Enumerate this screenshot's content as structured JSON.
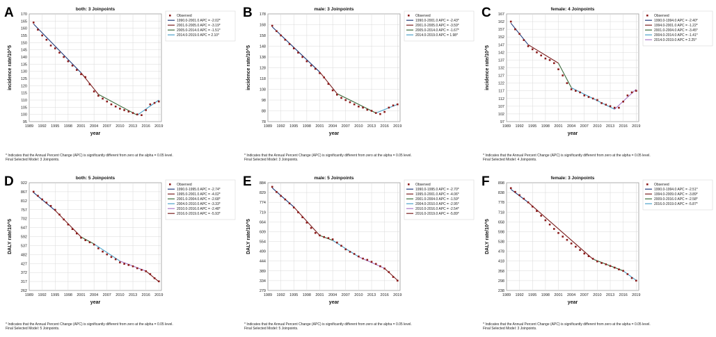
{
  "figure": {
    "footnote_line1": "* Indicates that the Annual Percent Change (APC) is significantly different from zero at the alpha = 0.05 level.",
    "observed_label": "Observed",
    "colors": {
      "observed": "#8b1a1a",
      "seg1": "#1f3a7a",
      "seg2": "#7a1f1f",
      "seg3": "#3a6a3a",
      "seg4": "#4aa0c8",
      "seg5": "#a878c8",
      "grid": "#d8d8d8",
      "frame": "#9a9a9a"
    }
  },
  "chart_data": [
    {
      "panel_label": "A",
      "type": "line",
      "title": "both: 3 Joinpoints",
      "xlabel": "year",
      "ylabel": "incidence rate/10^5",
      "xticks": [
        "1989",
        "1992",
        "1995",
        "1998",
        "2001",
        "2004",
        "2007",
        "2010",
        "2013",
        "2016",
        "2019"
      ],
      "yticks": [
        "95",
        "100",
        "105",
        "110",
        "115",
        "120",
        "125",
        "130",
        "135",
        "140",
        "145",
        "150",
        "155",
        "160",
        "165",
        "170"
      ],
      "xlim": [
        1989,
        2019.6
      ],
      "ylim": [
        95,
        170
      ],
      "legend": [
        "1990.0-2001.0 APC = -2.02*",
        "2001.0-2005.0 APC = -3.19*",
        "2005.0-2014.0 APC = -1.51*",
        "2014.0-2019.0 APC = 2.10*"
      ],
      "final_model": "Final Selected Model: 3 Joinpoints.",
      "x": [
        1990,
        1991,
        1992,
        1993,
        1994,
        1995,
        1996,
        1997,
        1998,
        1999,
        2000,
        2001,
        2002,
        2003,
        2004,
        2005,
        2006,
        2007,
        2008,
        2009,
        2010,
        2011,
        2012,
        2013,
        2014,
        2015,
        2016,
        2017,
        2018,
        2019
      ],
      "observed": [
        164,
        159,
        155,
        152,
        148,
        146,
        143,
        140,
        137,
        134,
        131,
        128,
        126,
        121,
        116,
        113,
        111,
        109,
        107,
        105.5,
        104,
        103,
        102,
        101,
        100,
        99.5,
        103,
        107,
        108,
        109
      ],
      "fit_segments": [
        [
          1990,
          2001,
          163,
          129
        ],
        [
          2001,
          2005,
          129,
          114
        ],
        [
          2005,
          2014,
          114,
          99.5
        ],
        [
          2014,
          2019,
          99.5,
          110
        ]
      ]
    },
    {
      "panel_label": "B",
      "type": "line",
      "title": "male: 3 Joinpoints",
      "xlabel": "year",
      "ylabel": "incidence rate/10^5",
      "xticks": [
        "1989",
        "1992",
        "1995",
        "1998",
        "2001",
        "2004",
        "2007",
        "2010",
        "2013",
        "2016",
        "2019"
      ],
      "yticks": [
        "78",
        "88",
        "98",
        "108",
        "118",
        "128",
        "138",
        "148",
        "158",
        "168",
        "178"
      ],
      "xlim": [
        1989,
        2019.6
      ],
      "ylim": [
        78,
        178
      ],
      "legend": [
        "1990.0-2001.0 APC = -2.43*",
        "2001.0-2005.0 APC = -3.59*",
        "2005.0-2014.0 APC = -1.67*",
        "2014.0-2019.0 APC = 1.98*"
      ],
      "final_model": "Final Selected Model: 3 Joinpoints.",
      "x": [
        1990,
        1991,
        1992,
        1993,
        1994,
        1995,
        1996,
        1997,
        1998,
        1999,
        2000,
        2001,
        2002,
        2003,
        2004,
        2005,
        2006,
        2007,
        2008,
        2009,
        2010,
        2011,
        2012,
        2013,
        2014,
        2015,
        2016,
        2017,
        2018,
        2019
      ],
      "observed": [
        167,
        162,
        158,
        154,
        150,
        146,
        142,
        138,
        134,
        130,
        127,
        123,
        119,
        113,
        107,
        103,
        100,
        98,
        96,
        94,
        92,
        91,
        89,
        88,
        86,
        85,
        87,
        91,
        93,
        94
      ],
      "fit_segments": [
        [
          1990,
          2001,
          166,
          124
        ],
        [
          2001,
          2005,
          124,
          104
        ],
        [
          2005,
          2014,
          104,
          86
        ],
        [
          2014,
          2019,
          86,
          94
        ]
      ]
    },
    {
      "panel_label": "C",
      "type": "line",
      "title": "female: 4 Joinpoints",
      "xlabel": "year",
      "ylabel": "incidence rate/10^5",
      "xticks": [
        "1989",
        "1992",
        "1995",
        "1998",
        "2001",
        "2004",
        "2007",
        "2010",
        "2013",
        "2016",
        "2019"
      ],
      "yticks": [
        "97",
        "102",
        "107",
        "112",
        "117",
        "122",
        "127",
        "132",
        "137",
        "142",
        "147",
        "152",
        "157",
        "162",
        "167"
      ],
      "xlim": [
        1989,
        2019.6
      ],
      "ylim": [
        97,
        167
      ],
      "legend": [
        "1990.0-1994.0 APC = -2.40*",
        "1994.0-2001.0 APC = -1.22*",
        "2001.0-2004.0 APC = -3.45*",
        "2004.0-2014.0 APC = -1.41*",
        "2014.0-2019.0 APC = 2.25*"
      ],
      "final_model": "Final Selected Model: 4 Joinpoints.",
      "x": [
        1990,
        1991,
        1992,
        1993,
        1994,
        1995,
        1996,
        1997,
        1998,
        1999,
        2000,
        2001,
        2002,
        2003,
        2004,
        2005,
        2006,
        2007,
        2008,
        2009,
        2010,
        2011,
        2012,
        2013,
        2014,
        2015,
        2016,
        2017,
        2018,
        2019
      ],
      "observed": [
        162,
        157,
        154,
        150,
        146,
        144,
        142,
        140,
        138,
        137,
        135,
        131,
        127,
        122,
        118,
        117,
        116,
        114,
        113,
        112,
        111,
        109,
        108,
        107,
        106,
        106,
        110,
        114,
        116,
        117
      ],
      "fit_segments": [
        [
          1990,
          1994,
          161,
          147
        ],
        [
          1994,
          2001,
          147,
          135
        ],
        [
          2001,
          2004,
          135,
          119
        ],
        [
          2004,
          2014,
          119,
          105
        ],
        [
          2014,
          2019,
          105,
          118
        ]
      ]
    },
    {
      "panel_label": "D",
      "type": "line",
      "title": "both: 5 Joinpoints",
      "xlabel": "year",
      "ylabel": "DALY rate/10^5",
      "xticks": [
        "1989",
        "1992",
        "1995",
        "1998",
        "2001",
        "2004",
        "2007",
        "2010",
        "2013",
        "2016",
        "2019"
      ],
      "yticks": [
        "262",
        "317",
        "372",
        "427",
        "482",
        "537",
        "592",
        "647",
        "702",
        "757",
        "812",
        "867",
        "922"
      ],
      "xlim": [
        1989,
        2019.6
      ],
      "ylim": [
        262,
        922
      ],
      "legend": [
        "1990.0-1995.0 APC = -2.74*",
        "1995.0-2001.0 APC = -4.02*",
        "2001.0-2004.0 APC = -2.68*",
        "2004.0-2010.0 APC = -3.33*",
        "2010.0-2016.0 APC = -2.48*",
        "2016.0-2019.0 APC = -5.93*"
      ],
      "final_model": "Final Selected Model: 5 Joinpoints.",
      "x": [
        1990,
        1991,
        1992,
        1993,
        1994,
        1995,
        1996,
        1997,
        1998,
        1999,
        2000,
        2001,
        2002,
        2003,
        2004,
        2005,
        2006,
        2007,
        2008,
        2009,
        2010,
        2011,
        2012,
        2013,
        2014,
        2015,
        2016,
        2017,
        2018,
        2019
      ],
      "observed": [
        867,
        842,
        820,
        800,
        780,
        756,
        727,
        697,
        666,
        638,
        611,
        585,
        570,
        557,
        543,
        520,
        500,
        483,
        467,
        453,
        434,
        425,
        418,
        410,
        398,
        388,
        380,
        362,
        337,
        318
      ],
      "fit_segments": [
        [
          1990,
          1995,
          862,
          752
        ],
        [
          1995,
          2001,
          752,
          590
        ],
        [
          2001,
          2004,
          590,
          547
        ],
        [
          2004,
          2010,
          547,
          442
        ],
        [
          2010,
          2016,
          442,
          381
        ],
        [
          2016,
          2019,
          381,
          316
        ]
      ]
    },
    {
      "panel_label": "E",
      "type": "line",
      "title": "male: 5 Joinpoints",
      "xlabel": "year",
      "ylabel": "DALY rate/10^5",
      "xticks": [
        "1989",
        "1992",
        "1995",
        "1998",
        "2001",
        "2004",
        "2007",
        "2010",
        "2013",
        "2016",
        "2019"
      ],
      "yticks": [
        "279",
        "334",
        "389",
        "444",
        "499",
        "554",
        "609",
        "664",
        "719",
        "774",
        "829",
        "884"
      ],
      "xlim": [
        1989,
        2019.6
      ],
      "ylim": [
        279,
        884
      ],
      "legend": [
        "1990.0-1995.0 APC = -2.70*",
        "1995.0-2001.0 APC = -4.06*",
        "2001.0-2004.0 APC = -1.59*",
        "2004.0-2010.0 APC = -2.95*",
        "2010.0-2016.0 APC = -2.54*",
        "2016.0-2019.0 APC = -5.89*"
      ],
      "final_model": "Final Selected Model: 5 Joinpoints.",
      "x": [
        1990,
        1991,
        1992,
        1993,
        1994,
        1995,
        1996,
        1997,
        1998,
        1999,
        2000,
        2001,
        2002,
        2003,
        2004,
        2005,
        2006,
        2007,
        2008,
        2009,
        2010,
        2011,
        2012,
        2013,
        2014,
        2015,
        2016,
        2017,
        2018,
        2019
      ],
      "observed": [
        861,
        832,
        810,
        790,
        768,
        745,
        718,
        690,
        660,
        630,
        602,
        588,
        579,
        573,
        566,
        548,
        530,
        510,
        496,
        484,
        470,
        458,
        451,
        440,
        428,
        415,
        402,
        382,
        355,
        334
      ],
      "fit_segments": [
        [
          1990,
          1995,
          855,
          748
        ],
        [
          1995,
          2001,
          748,
          588
        ],
        [
          2001,
          2004,
          588,
          560
        ],
        [
          2004,
          2010,
          560,
          468
        ],
        [
          2010,
          2016,
          468,
          403
        ],
        [
          2016,
          2019,
          403,
          336
        ]
      ]
    },
    {
      "panel_label": "F",
      "type": "line",
      "title": "female: 3 Joinpoints",
      "xlabel": "year",
      "ylabel": "DALY rate/10^5",
      "xticks": [
        "1989",
        "1992",
        "1995",
        "1998",
        "2001",
        "2004",
        "2007",
        "2010",
        "2013",
        "2016",
        "2019"
      ],
      "yticks": [
        "238",
        "298",
        "358",
        "418",
        "478",
        "538",
        "598",
        "658",
        "718",
        "778",
        "838",
        "898"
      ],
      "xlim": [
        1989,
        2019.6
      ],
      "ylim": [
        238,
        898
      ],
      "legend": [
        "1990.0-1994.0 APC = -2.51*",
        "1994.0-2009.0 APC = -3.89*",
        "2009.0-2016.0 APC = -2.58*",
        "2016.0-2019.0 APC = -5.87*"
      ],
      "final_model": "Final Selected Model: 3 Joinpoints.",
      "x": [
        1990,
        1991,
        1992,
        1993,
        1994,
        1995,
        1996,
        1997,
        1998,
        1999,
        2000,
        2001,
        2002,
        2003,
        2004,
        2005,
        2006,
        2007,
        2008,
        2009,
        2010,
        2011,
        2012,
        2013,
        2014,
        2015,
        2016,
        2017,
        2018,
        2019
      ],
      "observed": [
        865,
        842,
        822,
        800,
        778,
        752,
        725,
        696,
        668,
        642,
        615,
        590,
        568,
        548,
        526,
        506,
        486,
        464,
        448,
        432,
        416,
        406,
        398,
        388,
        378,
        367,
        358,
        338,
        314,
        298
      ],
      "fit_segments": [
        [
          1990,
          1994,
          858,
          778
        ],
        [
          1994,
          2009,
          778,
          430
        ],
        [
          2009,
          2016,
          430,
          358
        ],
        [
          2016,
          2019,
          358,
          300
        ]
      ]
    }
  ]
}
